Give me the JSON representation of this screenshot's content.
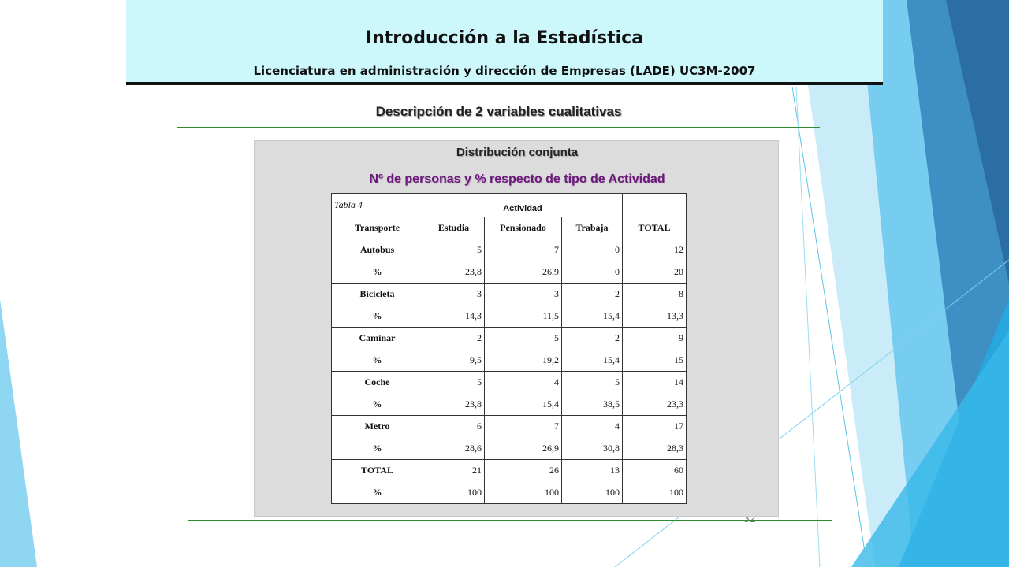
{
  "header": {
    "title": "Introducción a la Estadística",
    "subtitle": "Licenciatura en administración y dirección de Empresas (LADE) UC3M-2007"
  },
  "section_title": "Descripción de 2 variables cualitativas",
  "panel": {
    "title": "Distribución conjunta",
    "subtitle": "Nº de personas y %  respecto de tipo de Actividad"
  },
  "table": {
    "caption": "Tabla 4",
    "group_header": "Actividad",
    "columns": [
      "Transporte",
      "Estudia",
      "Pensionado",
      "Trabaja",
      "TOTAL"
    ],
    "rows": [
      [
        "Autobus",
        "5",
        "7",
        "0",
        "12"
      ],
      [
        "%",
        "23,8",
        "26,9",
        "0",
        "20"
      ],
      [
        "Bicicleta",
        "3",
        "3",
        "2",
        "8"
      ],
      [
        "%",
        "14,3",
        "11,5",
        "15,4",
        "13,3"
      ],
      [
        "Caminar",
        "2",
        "5",
        "2",
        "9"
      ],
      [
        "%",
        "9,5",
        "19,2",
        "15,4",
        "15"
      ],
      [
        "Coche",
        "5",
        "4",
        "5",
        "14"
      ],
      [
        "%",
        "23,8",
        "15,4",
        "38,5",
        "23,3"
      ],
      [
        "Metro",
        "6",
        "7",
        "4",
        "17"
      ],
      [
        "%",
        "28,6",
        "26,9",
        "30,8",
        "28,3"
      ],
      [
        "TOTAL",
        "21",
        "26",
        "13",
        "60"
      ],
      [
        "%",
        "100",
        "100",
        "100",
        "100"
      ]
    ]
  },
  "page_number": "32",
  "colors": {
    "header_bg": "#ccf8fc",
    "subtitle_purple": "#6b1a7a",
    "rule_green": "#2e8b2e",
    "panel_bg": "#dcdcdc"
  }
}
